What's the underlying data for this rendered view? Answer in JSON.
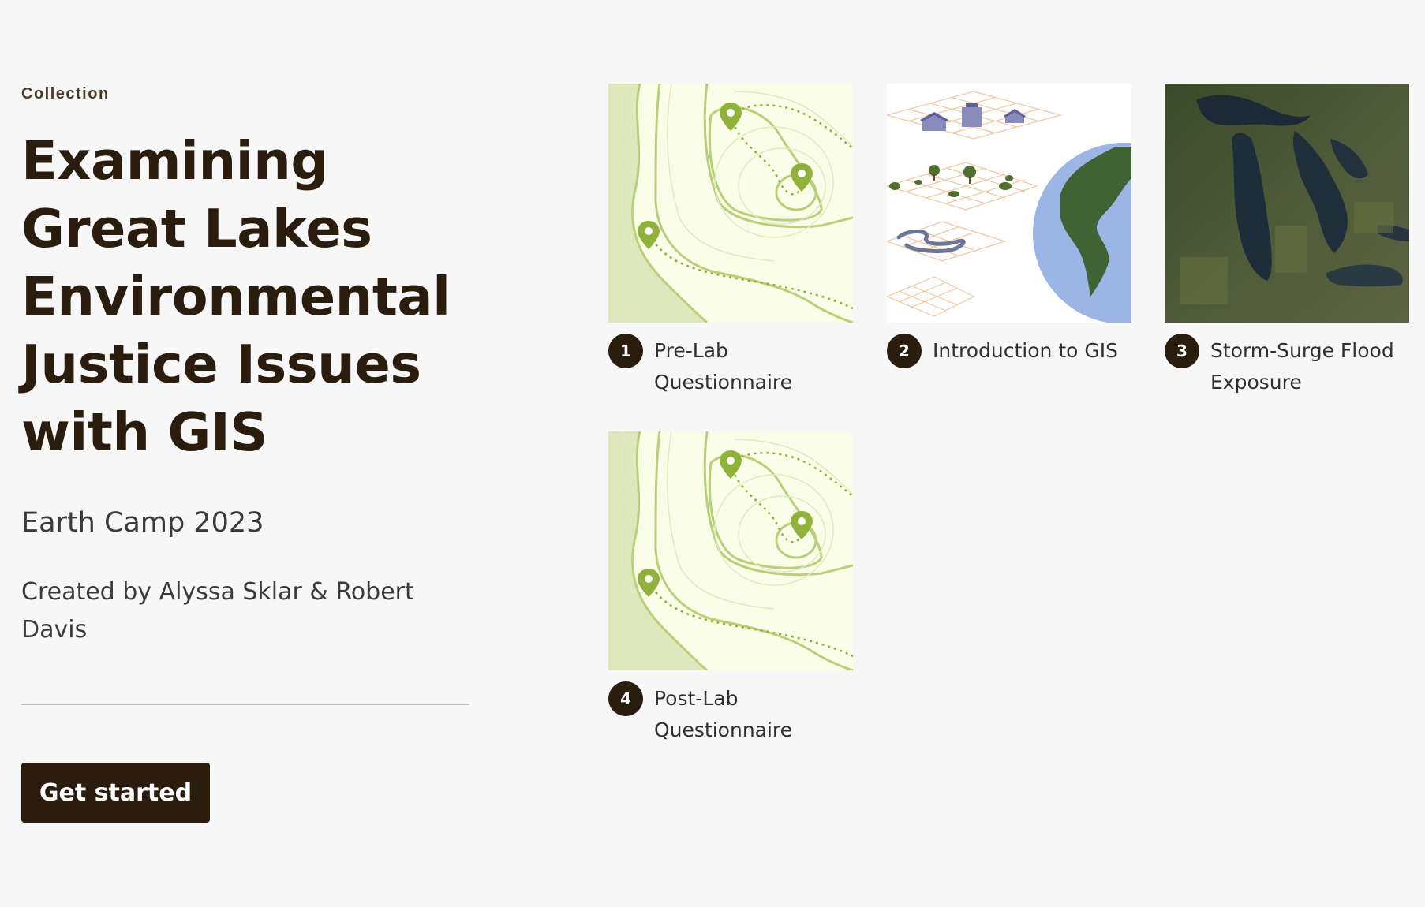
{
  "collection": {
    "eyebrow": "Collection",
    "title": "Examining Great Lakes Environmental Justice Issues with GIS",
    "subtitle": "Earth Camp 2023",
    "byline": "Created by Alyssa Sklar & Robert Davis",
    "cta_label": "Get started"
  },
  "items": [
    {
      "number": "1",
      "title": "Pre-Lab Questionnaire",
      "thumbnail": "topographic-map-with-pins"
    },
    {
      "number": "2",
      "title": "Introduction to GIS",
      "thumbnail": "gis-layers-and-globe"
    },
    {
      "number": "3",
      "title": "Storm-Surge Flood Exposure",
      "thumbnail": "great-lakes-satellite"
    },
    {
      "number": "4",
      "title": "Post-Lab Questionnaire",
      "thumbnail": "topographic-map-with-pins"
    }
  ],
  "colors": {
    "accent": "#2b1d0e",
    "background": "#f7f7f7",
    "map_green": "#8fb33a"
  }
}
